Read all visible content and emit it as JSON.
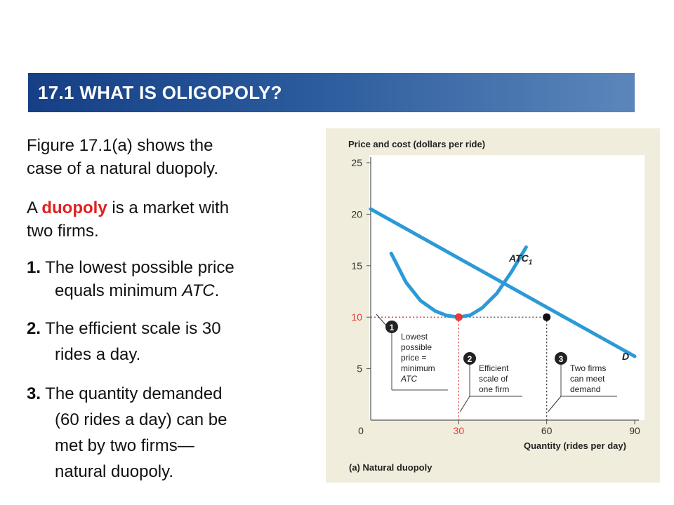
{
  "header": {
    "title": "17.1 WHAT IS OLIGOPOLY?"
  },
  "content": {
    "para1_line1": "Figure 17.1(a) shows the",
    "para1_line2": "case of a natural duopoly.",
    "para2_prefix": "A ",
    "para2_term": "duopoly",
    "para2_suffix": " is a market with",
    "para2_line2": "two firms.",
    "item1_num": "1.",
    "item1_line1": " The lowest possible price",
    "item1_line2_pre": "equals minimum ",
    "item1_line2_em": "ATC",
    "item1_line2_post": ".",
    "item2_num": "2.",
    "item2_line1": " The efficient scale is 30",
    "item2_line2": "rides a day.",
    "item3_num": "3.",
    "item3_line1": " The quantity demanded",
    "item3_line2": "(60 rides a day) can be",
    "item3_line3": "met by two firms—",
    "item3_line4": "natural duopoly."
  },
  "chart_data": {
    "type": "line",
    "title": "(a) Natural duopoly",
    "xlabel": "Quantity (rides per day)",
    "ylabel": "Price and cost (dollars per ride)",
    "xlim": [
      0,
      90
    ],
    "ylim": [
      0,
      25
    ],
    "x_ticks": [
      0,
      30,
      60,
      90
    ],
    "y_ticks": [
      5,
      10,
      15,
      20,
      25
    ],
    "grid": false,
    "series": [
      {
        "name": "D",
        "color": "#2b9ad6",
        "x": [
          0,
          90
        ],
        "y": [
          20.5,
          6.2
        ]
      },
      {
        "name": "ATC1",
        "color": "#2b9ad6",
        "x": [
          7,
          12,
          17,
          22,
          26,
          30,
          34,
          38,
          43,
          48,
          53
        ],
        "y": [
          16.2,
          13.4,
          11.6,
          10.6,
          10.15,
          10,
          10.2,
          10.9,
          12.3,
          14.4,
          16.8
        ]
      }
    ],
    "series_labels": {
      "D": "D",
      "ATC1": "ATC",
      "ATC1_sub": "1"
    },
    "points": [
      {
        "x": 30,
        "y": 10,
        "color": "#e53a3a"
      },
      {
        "x": 60,
        "y": 10,
        "color": "#111111"
      }
    ],
    "reference_lines": {
      "y10_color": "#e53a3a",
      "x30_color": "#e53a3a",
      "x60_color": "#333333"
    },
    "annotations": [
      {
        "num": "1",
        "lines": [
          "Lowest",
          "possible",
          "price =",
          "minimum",
          "ATC"
        ]
      },
      {
        "num": "2",
        "lines": [
          "Efficient",
          "scale of",
          "one firm"
        ]
      },
      {
        "num": "3",
        "lines": [
          "Two firms",
          "can meet",
          "demand"
        ]
      }
    ]
  }
}
